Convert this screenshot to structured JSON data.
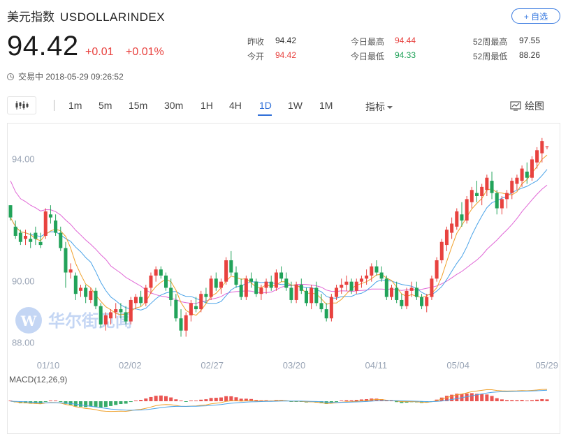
{
  "header": {
    "name": "美元指数",
    "code": "USDOLLARINDEX",
    "follow_label": "+ 自选"
  },
  "quote": {
    "price": "94.42",
    "change": "+0.01",
    "change_pct": "+0.01%",
    "status": "交易中 2018-05-29 09:26:52"
  },
  "stats": [
    {
      "label": "昨收",
      "value": "94.42",
      "tone": "dark"
    },
    {
      "label": "今日最高",
      "value": "94.44",
      "tone": "red"
    },
    {
      "label": "52周最高",
      "value": "97.55",
      "tone": "dark"
    },
    {
      "label": "今开",
      "value": "94.42",
      "tone": "red"
    },
    {
      "label": "今日最低",
      "value": "94.33",
      "tone": "green"
    },
    {
      "label": "52周最低",
      "value": "88.26",
      "tone": "dark"
    }
  ],
  "toolbar": {
    "periods": [
      "1m",
      "5m",
      "15m",
      "30m",
      "1H",
      "4H",
      "1D",
      "1W",
      "1M"
    ],
    "active_period": "1D",
    "indicator_label": "指标",
    "draw_label": "绘图"
  },
  "watermark": "华尔街见闻",
  "colors": {
    "up": "#e8423f",
    "down": "#22a35a",
    "ma5": "#f0a02a",
    "ma10": "#4aa3e8",
    "ma20": "#e066d6",
    "accent": "#2f6fd8"
  },
  "chart_data": {
    "type": "candlestick",
    "x_tick_labels": [
      "01/10",
      "02/02",
      "02/27",
      "03/20",
      "04/11",
      "05/04",
      "05/29"
    ],
    "y_tick_labels": [
      "94.00",
      "90.00",
      "88.00"
    ],
    "ylim": [
      87.55,
      94.9
    ],
    "grid": false,
    "candles_ohlc": [
      [
        92.5,
        92.5,
        92.0,
        92.1
      ],
      [
        91.8,
        92.0,
        91.4,
        91.5
      ],
      [
        91.6,
        91.7,
        91.2,
        91.3
      ],
      [
        91.4,
        91.7,
        91.2,
        91.5
      ],
      [
        91.4,
        91.6,
        91.1,
        91.3
      ],
      [
        91.6,
        91.8,
        91.2,
        91.4
      ],
      [
        91.3,
        91.6,
        91.1,
        91.2
      ],
      [
        91.5,
        92.4,
        91.4,
        92.3
      ],
      [
        92.2,
        92.5,
        91.9,
        92.1
      ],
      [
        92.0,
        92.2,
        91.5,
        91.6
      ],
      [
        91.6,
        91.8,
        91.0,
        91.1
      ],
      [
        91.1,
        91.3,
        89.8,
        90.3
      ],
      [
        90.3,
        90.6,
        90.1,
        90.4
      ],
      [
        90.2,
        90.3,
        89.4,
        89.6
      ],
      [
        89.7,
        89.9,
        89.5,
        89.8
      ],
      [
        89.8,
        89.9,
        89.3,
        89.5
      ],
      [
        89.4,
        89.8,
        89.3,
        89.7
      ],
      [
        89.7,
        89.8,
        89.1,
        89.2
      ],
      [
        89.2,
        89.3,
        88.5,
        88.6
      ],
      [
        88.6,
        89.0,
        88.4,
        88.9
      ],
      [
        88.8,
        89.1,
        88.6,
        89.0
      ],
      [
        89.0,
        89.3,
        88.8,
        89.1
      ],
      [
        89.1,
        89.3,
        88.8,
        89.0
      ],
      [
        89.0,
        89.2,
        88.6,
        88.7
      ],
      [
        88.7,
        89.5,
        88.6,
        89.4
      ],
      [
        89.3,
        89.6,
        89.1,
        89.5
      ],
      [
        89.5,
        89.7,
        89.2,
        89.3
      ],
      [
        89.3,
        89.9,
        89.2,
        89.8
      ],
      [
        89.8,
        90.3,
        89.6,
        90.2
      ],
      [
        90.2,
        90.5,
        90.0,
        90.4
      ],
      [
        90.4,
        90.5,
        90.1,
        90.2
      ],
      [
        90.2,
        90.3,
        89.7,
        89.8
      ],
      [
        89.8,
        90.1,
        89.2,
        89.4
      ],
      [
        89.4,
        89.6,
        88.7,
        88.8
      ],
      [
        88.8,
        89.1,
        88.2,
        88.4
      ],
      [
        88.4,
        89.0,
        88.2,
        88.9
      ],
      [
        88.9,
        89.4,
        88.7,
        89.3
      ],
      [
        89.2,
        89.5,
        89.0,
        89.1
      ],
      [
        89.1,
        89.7,
        89.0,
        89.6
      ],
      [
        89.6,
        89.8,
        89.3,
        89.5
      ],
      [
        89.5,
        90.2,
        89.4,
        90.1
      ],
      [
        90.1,
        90.3,
        89.7,
        89.8
      ],
      [
        89.8,
        90.1,
        89.6,
        90.0
      ],
      [
        90.0,
        90.8,
        89.9,
        90.7
      ],
      [
        90.7,
        91.0,
        90.2,
        90.3
      ],
      [
        90.3,
        90.5,
        89.8,
        89.9
      ],
      [
        89.9,
        90.1,
        89.4,
        89.5
      ],
      [
        89.5,
        90.2,
        89.4,
        90.1
      ],
      [
        90.1,
        90.3,
        89.8,
        90.0
      ],
      [
        90.0,
        90.1,
        89.5,
        89.6
      ],
      [
        89.6,
        89.9,
        89.4,
        89.8
      ],
      [
        89.8,
        90.1,
        89.6,
        90.0
      ],
      [
        90.0,
        90.2,
        89.7,
        89.8
      ],
      [
        89.8,
        90.4,
        89.7,
        90.3
      ],
      [
        90.3,
        90.5,
        90.0,
        90.1
      ],
      [
        90.1,
        90.3,
        89.7,
        89.8
      ],
      [
        89.8,
        90.0,
        89.3,
        89.4
      ],
      [
        89.4,
        90.0,
        89.3,
        89.9
      ],
      [
        89.9,
        90.1,
        89.6,
        89.7
      ],
      [
        89.7,
        89.8,
        89.2,
        89.3
      ],
      [
        89.3,
        89.9,
        89.1,
        89.8
      ],
      [
        89.8,
        90.0,
        89.2,
        89.3
      ],
      [
        89.3,
        89.6,
        89.0,
        89.1
      ],
      [
        89.1,
        89.3,
        88.7,
        88.8
      ],
      [
        88.8,
        89.6,
        88.7,
        89.5
      ],
      [
        89.5,
        89.9,
        89.4,
        89.8
      ],
      [
        89.8,
        90.1,
        89.6,
        89.9
      ],
      [
        89.9,
        90.2,
        89.7,
        90.0
      ],
      [
        90.0,
        90.1,
        89.6,
        89.7
      ],
      [
        89.7,
        90.1,
        89.6,
        90.0
      ],
      [
        90.0,
        90.2,
        89.8,
        90.1
      ],
      [
        90.1,
        90.4,
        89.9,
        90.2
      ],
      [
        90.2,
        90.6,
        90.0,
        90.5
      ],
      [
        90.5,
        90.7,
        90.2,
        90.3
      ],
      [
        90.3,
        90.5,
        90.0,
        90.1
      ],
      [
        90.1,
        90.2,
        89.4,
        89.5
      ],
      [
        89.5,
        89.9,
        89.4,
        89.8
      ],
      [
        89.8,
        90.0,
        89.3,
        89.4
      ],
      [
        89.4,
        89.6,
        89.1,
        89.2
      ],
      [
        89.2,
        89.8,
        89.1,
        89.7
      ],
      [
        89.7,
        90.0,
        89.5,
        89.8
      ],
      [
        89.8,
        90.0,
        89.4,
        89.5
      ],
      [
        89.5,
        89.6,
        89.1,
        89.2
      ],
      [
        89.2,
        89.6,
        89.0,
        89.5
      ],
      [
        89.5,
        90.2,
        89.4,
        90.1
      ],
      [
        90.1,
        90.8,
        90.0,
        90.7
      ],
      [
        90.7,
        91.4,
        90.6,
        91.3
      ],
      [
        91.2,
        91.8,
        91.0,
        91.7
      ],
      [
        91.6,
        92.1,
        91.4,
        91.9
      ],
      [
        91.8,
        92.4,
        91.7,
        92.3
      ],
      [
        92.2,
        92.6,
        91.8,
        92.0
      ],
      [
        92.0,
        92.8,
        91.9,
        92.7
      ],
      [
        92.6,
        93.1,
        92.4,
        93.0
      ],
      [
        92.9,
        93.3,
        92.6,
        92.8
      ],
      [
        92.8,
        93.2,
        92.5,
        93.1
      ],
      [
        93.0,
        93.5,
        92.8,
        93.4
      ],
      [
        93.3,
        93.6,
        92.7,
        92.9
      ],
      [
        92.9,
        93.0,
        92.2,
        92.4
      ],
      [
        92.4,
        92.8,
        92.2,
        92.7
      ],
      [
        92.7,
        93.0,
        92.4,
        92.9
      ],
      [
        92.9,
        93.4,
        92.7,
        93.3
      ],
      [
        93.2,
        93.5,
        93.0,
        93.4
      ],
      [
        93.3,
        93.8,
        93.1,
        93.7
      ],
      [
        93.6,
        93.9,
        93.2,
        93.4
      ],
      [
        93.4,
        94.1,
        93.3,
        94.0
      ],
      [
        93.9,
        94.4,
        93.7,
        94.3
      ],
      [
        94.2,
        94.7,
        93.9,
        94.6
      ],
      [
        94.4,
        94.44,
        94.33,
        94.42
      ]
    ],
    "macd_legend": "MACD(12,26,9)"
  }
}
